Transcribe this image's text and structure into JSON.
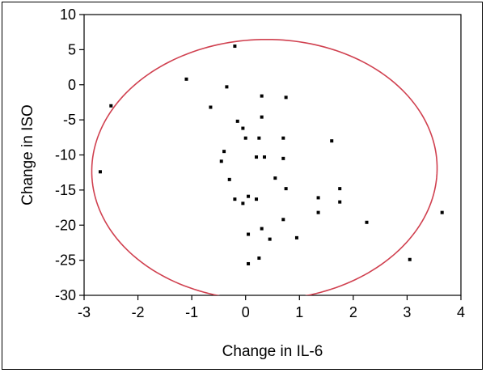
{
  "chart_data": {
    "type": "scatter",
    "title": "",
    "xlabel": "Change in IL-6",
    "ylabel": "Change in ISO",
    "xlim": [
      -3,
      4
    ],
    "ylim": [
      -30,
      10
    ],
    "xticks": [
      -3,
      -2,
      -1,
      0,
      1,
      2,
      3,
      4
    ],
    "yticks": [
      10,
      5,
      0,
      -5,
      -10,
      -15,
      -20,
      -25,
      -30
    ],
    "grid": false,
    "legend": "none",
    "point_color": "#000000",
    "ellipse_color": "#d0404f",
    "ellipse": {
      "type": "density ellipse",
      "center": [
        0.35,
        -12.1
      ],
      "semi_axes": [
        3.2,
        18.6
      ],
      "angle_deg": -22
    },
    "points": [
      {
        "x": -2.7,
        "y": -12.4
      },
      {
        "x": -2.5,
        "y": -3.0
      },
      {
        "x": -1.1,
        "y": 0.8
      },
      {
        "x": -0.65,
        "y": -3.2
      },
      {
        "x": -0.35,
        "y": -0.3
      },
      {
        "x": -0.2,
        "y": 5.5
      },
      {
        "x": -0.15,
        "y": -5.2
      },
      {
        "x": -0.05,
        "y": -6.2
      },
      {
        "x": 0.0,
        "y": -7.6
      },
      {
        "x": 0.3,
        "y": -1.6
      },
      {
        "x": 0.3,
        "y": -4.6
      },
      {
        "x": 0.75,
        "y": -1.8
      },
      {
        "x": 0.25,
        "y": -7.6
      },
      {
        "x": 0.7,
        "y": -7.6
      },
      {
        "x": -0.4,
        "y": -9.5
      },
      {
        "x": -0.45,
        "y": -10.9
      },
      {
        "x": 0.2,
        "y": -10.3
      },
      {
        "x": 0.35,
        "y": -10.3
      },
      {
        "x": 0.7,
        "y": -10.5
      },
      {
        "x": 1.6,
        "y": -8.0
      },
      {
        "x": -0.3,
        "y": -13.5
      },
      {
        "x": 0.55,
        "y": -13.3
      },
      {
        "x": 0.75,
        "y": -14.8
      },
      {
        "x": -0.2,
        "y": -16.3
      },
      {
        "x": -0.05,
        "y": -16.9
      },
      {
        "x": 0.05,
        "y": -15.9
      },
      {
        "x": 0.2,
        "y": -16.3
      },
      {
        "x": 1.35,
        "y": -16.1
      },
      {
        "x": 1.75,
        "y": -14.8
      },
      {
        "x": 1.75,
        "y": -16.7
      },
      {
        "x": 1.35,
        "y": -18.2
      },
      {
        "x": 0.7,
        "y": -19.2
      },
      {
        "x": 2.25,
        "y": -19.6
      },
      {
        "x": 3.65,
        "y": -18.2
      },
      {
        "x": 0.05,
        "y": -21.3
      },
      {
        "x": 0.3,
        "y": -20.5
      },
      {
        "x": 0.45,
        "y": -22.0
      },
      {
        "x": 0.95,
        "y": -21.8
      },
      {
        "x": 0.05,
        "y": -25.5
      },
      {
        "x": 0.25,
        "y": -24.7
      },
      {
        "x": 3.05,
        "y": -24.9
      }
    ]
  }
}
